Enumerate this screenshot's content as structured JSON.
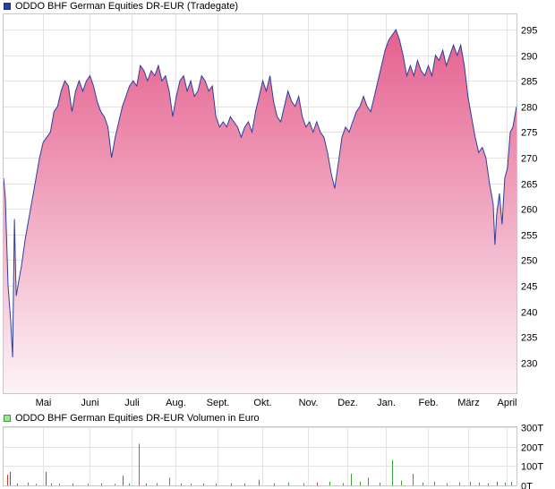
{
  "chart_data": [
    {
      "type": "area",
      "legend": "ODDO BHF German Equities DR-EUR (Tradegate)",
      "color": "#2b3f9e",
      "fill_top": "#e5608e",
      "fill_bottom": "#fdf3f7",
      "ylim": [
        224,
        298
      ],
      "yticks": [
        230,
        235,
        240,
        245,
        250,
        255,
        260,
        265,
        270,
        275,
        280,
        285,
        290,
        295
      ],
      "grid": true,
      "x_start_index": 0,
      "x_end_index": 570,
      "months": [
        {
          "label": "Mai",
          "index": 44
        },
        {
          "label": "Juni",
          "index": 95
        },
        {
          "label": "Juli",
          "index": 142
        },
        {
          "label": "Aug.",
          "index": 191
        },
        {
          "label": "Sept.",
          "index": 238
        },
        {
          "label": "Okt.",
          "index": 287
        },
        {
          "label": "Nov.",
          "index": 338
        },
        {
          "label": "Dez.",
          "index": 382
        },
        {
          "label": "Jan.",
          "index": 425
        },
        {
          "label": "Feb.",
          "index": 472
        },
        {
          "label": "März",
          "index": 516
        },
        {
          "label": "April",
          "index": 559
        }
      ],
      "series": [
        {
          "points": [
            [
              0,
              266
            ],
            [
              2,
              262
            ],
            [
              5,
              245
            ],
            [
              8,
              238
            ],
            [
              10,
              231
            ],
            [
              12,
              258
            ],
            [
              14,
              243
            ],
            [
              17,
              246
            ],
            [
              20,
              249
            ],
            [
              24,
              254
            ],
            [
              28,
              258
            ],
            [
              32,
              262
            ],
            [
              36,
              266
            ],
            [
              40,
              270
            ],
            [
              44,
              273
            ],
            [
              48,
              274
            ],
            [
              52,
              275
            ],
            [
              56,
              279
            ],
            [
              60,
              280
            ],
            [
              64,
              283
            ],
            [
              68,
              285
            ],
            [
              72,
              284
            ],
            [
              76,
              279
            ],
            [
              80,
              283
            ],
            [
              84,
              285
            ],
            [
              88,
              283
            ],
            [
              92,
              285
            ],
            [
              96,
              286
            ],
            [
              100,
              284
            ],
            [
              104,
              281
            ],
            [
              108,
              279
            ],
            [
              112,
              278
            ],
            [
              116,
              276
            ],
            [
              120,
              270
            ],
            [
              124,
              274
            ],
            [
              128,
              277
            ],
            [
              132,
              280
            ],
            [
              136,
              282
            ],
            [
              140,
              284
            ],
            [
              144,
              285
            ],
            [
              148,
              284
            ],
            [
              152,
              288
            ],
            [
              156,
              287
            ],
            [
              160,
              285
            ],
            [
              164,
              287
            ],
            [
              168,
              286
            ],
            [
              172,
              288
            ],
            [
              176,
              285
            ],
            [
              180,
              286
            ],
            [
              184,
              283
            ],
            [
              188,
              278
            ],
            [
              192,
              282
            ],
            [
              196,
              285
            ],
            [
              200,
              286
            ],
            [
              204,
              283
            ],
            [
              208,
              285
            ],
            [
              212,
              282
            ],
            [
              216,
              283
            ],
            [
              220,
              286
            ],
            [
              224,
              285
            ],
            [
              228,
              283
            ],
            [
              232,
              284
            ],
            [
              236,
              278
            ],
            [
              240,
              276
            ],
            [
              244,
              277
            ],
            [
              248,
              276
            ],
            [
              252,
              278
            ],
            [
              256,
              277
            ],
            [
              260,
              276
            ],
            [
              264,
              274
            ],
            [
              268,
              276
            ],
            [
              272,
              277
            ],
            [
              276,
              275
            ],
            [
              280,
              279
            ],
            [
              284,
              282
            ],
            [
              288,
              285
            ],
            [
              292,
              283
            ],
            [
              296,
              286
            ],
            [
              300,
              281
            ],
            [
              304,
              278
            ],
            [
              308,
              277
            ],
            [
              312,
              280
            ],
            [
              316,
              283
            ],
            [
              320,
              281
            ],
            [
              324,
              280
            ],
            [
              328,
              282
            ],
            [
              332,
              278
            ],
            [
              336,
              276
            ],
            [
              340,
              277
            ],
            [
              344,
              275
            ],
            [
              348,
              277
            ],
            [
              352,
              275
            ],
            [
              356,
              274
            ],
            [
              360,
              271
            ],
            [
              364,
              267
            ],
            [
              368,
              264
            ],
            [
              372,
              269
            ],
            [
              376,
              274
            ],
            [
              380,
              276
            ],
            [
              384,
              275
            ],
            [
              388,
              277
            ],
            [
              392,
              279
            ],
            [
              396,
              280
            ],
            [
              400,
              282
            ],
            [
              404,
              280
            ],
            [
              408,
              279
            ],
            [
              412,
              282
            ],
            [
              416,
              285
            ],
            [
              420,
              288
            ],
            [
              424,
              291
            ],
            [
              428,
              293
            ],
            [
              432,
              294
            ],
            [
              436,
              295
            ],
            [
              440,
              293
            ],
            [
              444,
              290
            ],
            [
              448,
              286
            ],
            [
              452,
              288
            ],
            [
              456,
              286
            ],
            [
              460,
              289
            ],
            [
              464,
              287
            ],
            [
              468,
              286
            ],
            [
              472,
              288
            ],
            [
              476,
              286
            ],
            [
              480,
              290
            ],
            [
              484,
              289
            ],
            [
              488,
              291
            ],
            [
              492,
              288
            ],
            [
              496,
              290
            ],
            [
              500,
              292
            ],
            [
              504,
              290
            ],
            [
              508,
              292
            ],
            [
              512,
              288
            ],
            [
              516,
              282
            ],
            [
              520,
              278
            ],
            [
              524,
              274
            ],
            [
              528,
              271
            ],
            [
              532,
              272
            ],
            [
              536,
              270
            ],
            [
              540,
              265
            ],
            [
              544,
              261
            ],
            [
              546,
              253
            ],
            [
              548,
              259
            ],
            [
              551,
              263
            ],
            [
              554,
              257
            ],
            [
              557,
              266
            ],
            [
              560,
              268
            ],
            [
              563,
              275
            ],
            [
              566,
              276
            ],
            [
              570,
              280
            ]
          ]
        }
      ]
    },
    {
      "type": "bar",
      "legend": "ODDO BHF German Equities DR-EUR Volumen in Euro",
      "color": "#3ba03b",
      "sell_color": "#d9342c",
      "ylim": [
        0,
        300
      ],
      "yticks": [
        {
          "value": 0,
          "label": "0T"
        },
        {
          "value": 100,
          "label": "100T"
        },
        {
          "value": 200,
          "label": "200T"
        },
        {
          "value": 300,
          "label": "300T"
        }
      ],
      "grid": true,
      "bars": [
        {
          "index": 4,
          "value": 55,
          "side": "sell"
        },
        {
          "index": 7,
          "value": 70,
          "side": "sell"
        },
        {
          "index": 15,
          "value": 10,
          "side": "sell"
        },
        {
          "index": 27,
          "value": 15,
          "side": "buy"
        },
        {
          "index": 36,
          "value": 8,
          "side": "buy"
        },
        {
          "index": 47,
          "value": 70,
          "side": "sell"
        },
        {
          "index": 53,
          "value": 12,
          "side": "buy"
        },
        {
          "index": 62,
          "value": 8,
          "side": "buy"
        },
        {
          "index": 77,
          "value": 10,
          "side": "buy"
        },
        {
          "index": 94,
          "value": 8,
          "side": "buy"
        },
        {
          "index": 108,
          "value": 12,
          "side": "buy"
        },
        {
          "index": 123,
          "value": 8,
          "side": "buy"
        },
        {
          "index": 132,
          "value": 50,
          "side": "sell"
        },
        {
          "index": 139,
          "value": 10,
          "side": "buy"
        },
        {
          "index": 150,
          "value": 215,
          "side": "buy"
        },
        {
          "index": 158,
          "value": 10,
          "side": "sell"
        },
        {
          "index": 170,
          "value": 12,
          "side": "buy"
        },
        {
          "index": 184,
          "value": 40,
          "side": "buy"
        },
        {
          "index": 197,
          "value": 10,
          "side": "buy"
        },
        {
          "index": 208,
          "value": 8,
          "side": "buy"
        },
        {
          "index": 222,
          "value": 10,
          "side": "buy"
        },
        {
          "index": 236,
          "value": 10,
          "side": "buy"
        },
        {
          "index": 253,
          "value": 12,
          "side": "buy"
        },
        {
          "index": 268,
          "value": 10,
          "side": "buy"
        },
        {
          "index": 284,
          "value": 30,
          "side": "buy"
        },
        {
          "index": 300,
          "value": 12,
          "side": "buy"
        },
        {
          "index": 316,
          "value": 15,
          "side": "buy"
        },
        {
          "index": 333,
          "value": 12,
          "side": "buy"
        },
        {
          "index": 348,
          "value": 15,
          "side": "sell"
        },
        {
          "index": 362,
          "value": 20,
          "side": "buy"
        },
        {
          "index": 377,
          "value": 12,
          "side": "buy"
        },
        {
          "index": 386,
          "value": 60,
          "side": "buy"
        },
        {
          "index": 396,
          "value": 20,
          "side": "buy"
        },
        {
          "index": 405,
          "value": 40,
          "side": "buy"
        },
        {
          "index": 418,
          "value": 15,
          "side": "buy"
        },
        {
          "index": 432,
          "value": 130,
          "side": "buy"
        },
        {
          "index": 442,
          "value": 25,
          "side": "buy"
        },
        {
          "index": 455,
          "value": 60,
          "side": "buy"
        },
        {
          "index": 466,
          "value": 15,
          "side": "buy"
        },
        {
          "index": 478,
          "value": 20,
          "side": "buy"
        },
        {
          "index": 492,
          "value": 12,
          "side": "buy"
        },
        {
          "index": 506,
          "value": 15,
          "side": "buy"
        },
        {
          "index": 518,
          "value": 20,
          "side": "buy"
        },
        {
          "index": 528,
          "value": 15,
          "side": "buy"
        },
        {
          "index": 538,
          "value": 12,
          "side": "buy"
        },
        {
          "index": 548,
          "value": 20,
          "side": "sell"
        },
        {
          "index": 557,
          "value": 15,
          "side": "buy"
        },
        {
          "index": 564,
          "value": 18,
          "side": "buy"
        }
      ]
    }
  ]
}
